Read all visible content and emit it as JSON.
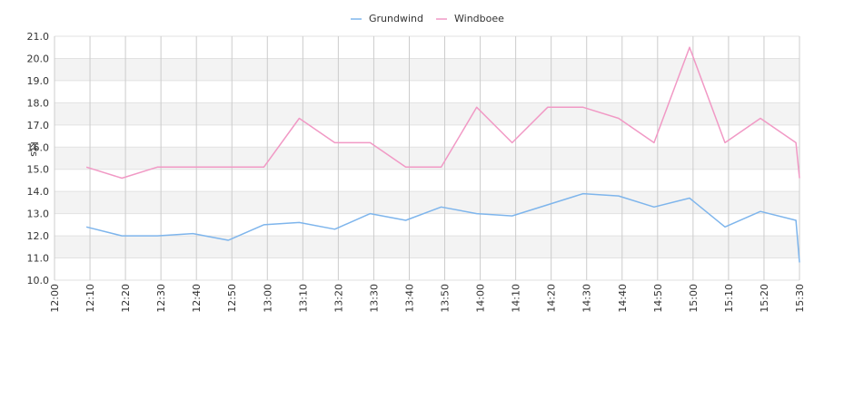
{
  "chart_data": {
    "type": "line",
    "title": "",
    "xlabel": "",
    "ylabel": "kts",
    "ylim": [
      10.0,
      21.0
    ],
    "y_ticks": [
      "10.0",
      "11.0",
      "12.0",
      "13.0",
      "14.0",
      "15.0",
      "16.0",
      "17.0",
      "18.0",
      "19.0",
      "20.0",
      "21.0"
    ],
    "x_ticks": [
      "12:00",
      "12:10",
      "12:20",
      "12:30",
      "12:40",
      "12:50",
      "13:00",
      "13:10",
      "13:20",
      "13:30",
      "13:40",
      "13:50",
      "14:00",
      "14:10",
      "14:20",
      "14:30",
      "14:40",
      "14:50",
      "15:00",
      "15:10",
      "15:20",
      "15:30"
    ],
    "x_unit": "minutes since 12:00",
    "xlim": [
      0,
      210
    ],
    "grid": true,
    "banded_background": true,
    "legend_position": "top-center",
    "series": [
      {
        "name": "Grundwind",
        "color": "#7eb5ec",
        "x": [
          9,
          19,
          29,
          39,
          49,
          59,
          69,
          79,
          89,
          99,
          109,
          119,
          129,
          139,
          149,
          159,
          169,
          179,
          189,
          199,
          209,
          210
        ],
        "values": [
          12.4,
          12.0,
          12.0,
          12.1,
          11.8,
          12.5,
          12.6,
          12.3,
          13.0,
          12.7,
          13.3,
          13.0,
          12.9,
          13.4,
          13.9,
          13.8,
          13.3,
          13.7,
          12.4,
          13.1,
          12.7,
          10.8
        ]
      },
      {
        "name": "Windboee",
        "color": "#f199c5",
        "x": [
          9,
          19,
          29,
          39,
          49,
          59,
          69,
          79,
          89,
          99,
          109,
          119,
          129,
          139,
          149,
          159,
          169,
          179,
          189,
          199,
          209,
          210
        ],
        "values": [
          15.1,
          14.6,
          15.1,
          15.1,
          15.1,
          15.1,
          17.3,
          16.2,
          16.2,
          15.1,
          15.1,
          17.8,
          16.2,
          17.8,
          17.8,
          17.3,
          16.2,
          20.5,
          16.2,
          17.3,
          16.2,
          14.6
        ]
      }
    ]
  }
}
